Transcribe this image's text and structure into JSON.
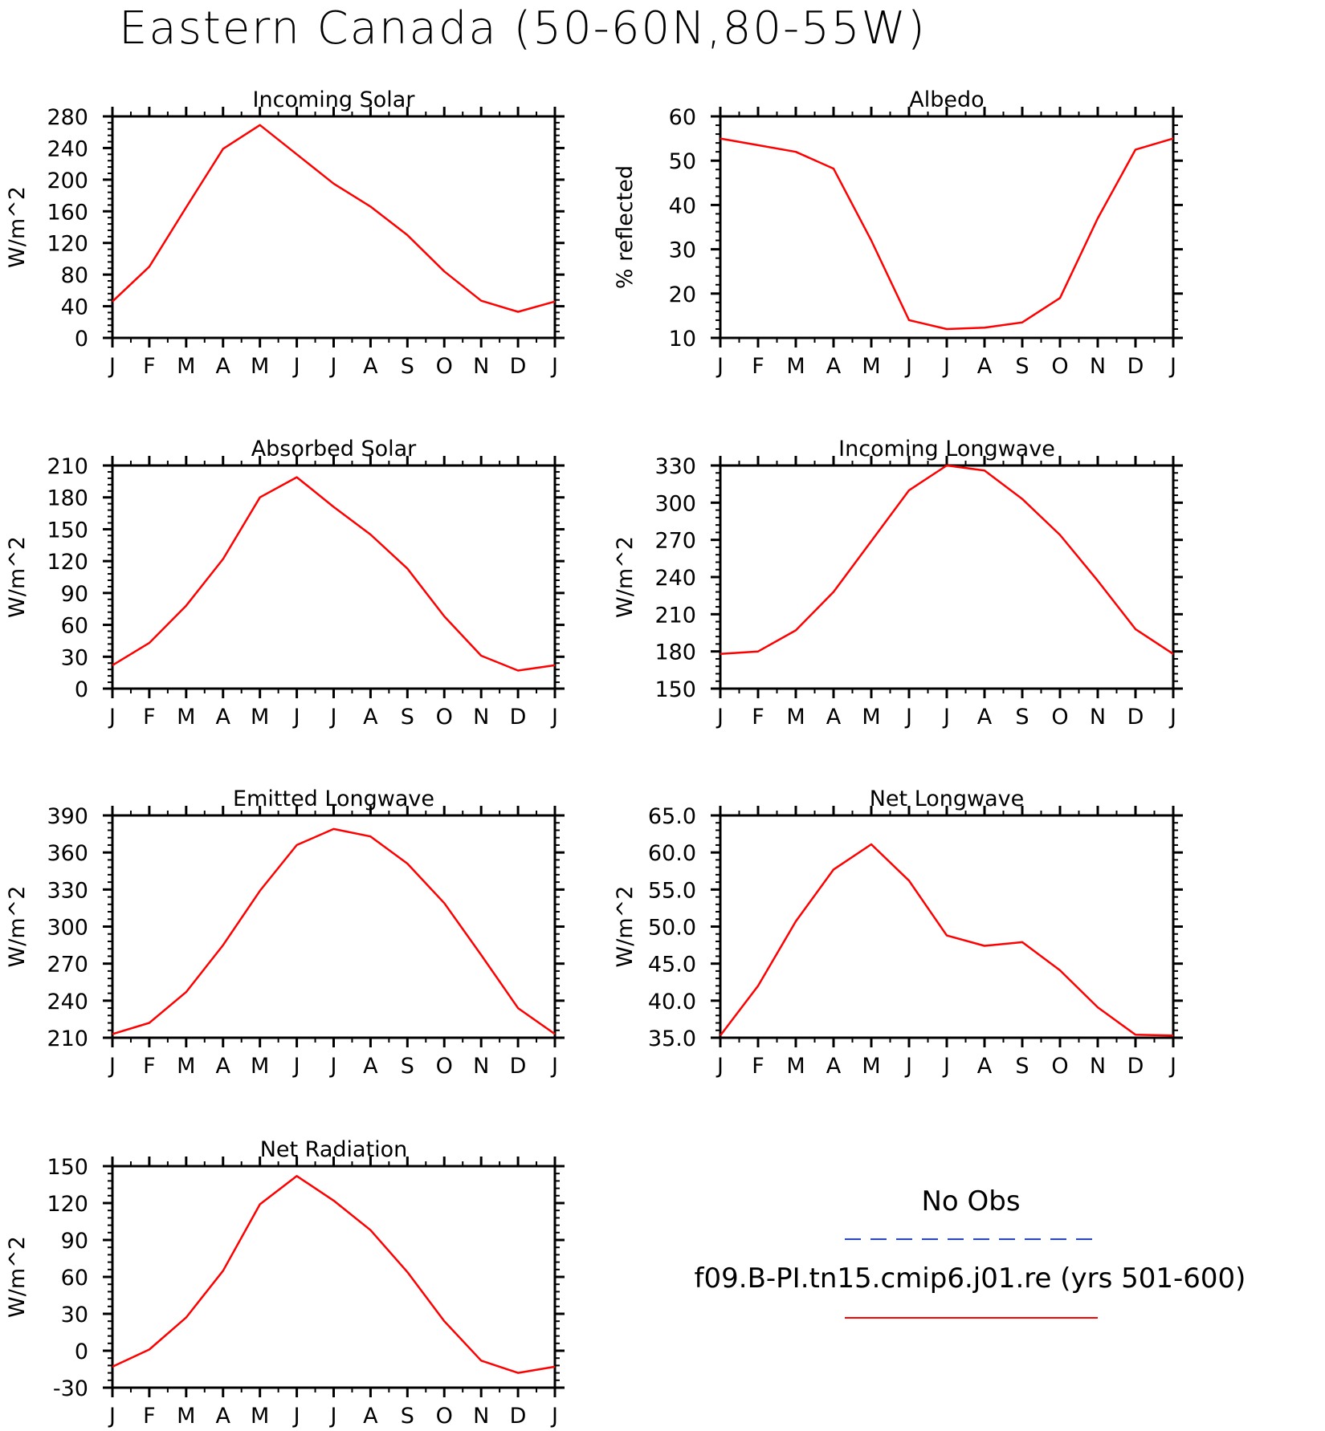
{
  "main_title": "Eastern Canada (50-60N,80-55W)",
  "months": [
    "J",
    "F",
    "M",
    "A",
    "M",
    "J",
    "J",
    "A",
    "S",
    "O",
    "N",
    "D",
    "J"
  ],
  "legend": {
    "obs_label": "No Obs",
    "obs_color": "#1f3fff",
    "model_label": "f09.B-PI.tn15.cmip6.j01.re (yrs 501-600)",
    "model_color": "#ff0000"
  },
  "chart_data": [
    {
      "type": "line",
      "title": "Incoming Solar",
      "ylabel": "W/m^2",
      "ylim": [
        0,
        280
      ],
      "yticks": [
        "0",
        "40",
        "80",
        "120",
        "160",
        "200",
        "240",
        "280"
      ],
      "series": [
        {
          "name": "f09.B-PI.tn15.cmip6.j01.re (yrs 501-600)",
          "color": "#ff0000",
          "values": [
            46,
            90,
            165,
            239,
            269,
            232,
            195,
            166,
            130,
            84,
            47,
            33,
            46
          ]
        }
      ]
    },
    {
      "type": "line",
      "title": "Albedo",
      "ylabel": "% reflected",
      "ylim": [
        10,
        60
      ],
      "yticks": [
        "10",
        "20",
        "30",
        "40",
        "50",
        "60"
      ],
      "series": [
        {
          "name": "f09.B-PI.tn15.cmip6.j01.re (yrs 501-600)",
          "color": "#ff0000",
          "values": [
            55,
            53.5,
            52,
            48.2,
            32,
            14,
            12,
            12.3,
            13.5,
            19,
            37,
            52.5,
            55
          ]
        }
      ]
    },
    {
      "type": "line",
      "title": "Absorbed Solar",
      "ylabel": "W/m^2",
      "ylim": [
        0,
        210
      ],
      "yticks": [
        "0",
        "30",
        "60",
        "90",
        "120",
        "150",
        "180",
        "210"
      ],
      "series": [
        {
          "name": "f09.B-PI.tn15.cmip6.j01.re (yrs 501-600)",
          "color": "#ff0000",
          "values": [
            22,
            43,
            78,
            122,
            180,
            199,
            171,
            145,
            113,
            68,
            31,
            17,
            22
          ]
        }
      ]
    },
    {
      "type": "line",
      "title": "Incoming Longwave",
      "ylabel": "W/m^2",
      "ylim": [
        150,
        330
      ],
      "yticks": [
        "150",
        "180",
        "210",
        "240",
        "270",
        "300",
        "330"
      ],
      "series": [
        {
          "name": "f09.B-PI.tn15.cmip6.j01.re (yrs 501-600)",
          "color": "#ff0000",
          "values": [
            178,
            180,
            197,
            228,
            269,
            310,
            330,
            326,
            303,
            274,
            237,
            198,
            178
          ]
        }
      ]
    },
    {
      "type": "line",
      "title": "Emitted Longwave",
      "ylabel": "W/m^2",
      "ylim": [
        210,
        390
      ],
      "yticks": [
        "210",
        "240",
        "270",
        "300",
        "330",
        "360",
        "390"
      ],
      "series": [
        {
          "name": "f09.B-PI.tn15.cmip6.j01.re (yrs 501-600)",
          "color": "#ff0000",
          "values": [
            213,
            222,
            247,
            285,
            329,
            366,
            379,
            373,
            351,
            319,
            277,
            234,
            213
          ]
        }
      ]
    },
    {
      "type": "line",
      "title": "Net Longwave",
      "ylabel": "W/m^2",
      "ylim": [
        35,
        65
      ],
      "yticks": [
        "35.0",
        "40.0",
        "45.0",
        "50.0",
        "55.0",
        "60.0",
        "65.0"
      ],
      "series": [
        {
          "name": "f09.B-PI.tn15.cmip6.j01.re (yrs 501-600)",
          "color": "#ff0000",
          "values": [
            35.3,
            42,
            50.7,
            57.7,
            61.1,
            56.2,
            48.8,
            47.4,
            47.9,
            44.1,
            39.1,
            35.4,
            35.3
          ]
        }
      ]
    },
    {
      "type": "line",
      "title": "Net Radiation",
      "ylabel": "W/m^2",
      "ylim": [
        -30,
        150
      ],
      "yticks": [
        "-30",
        "0",
        "30",
        "60",
        "90",
        "120",
        "150"
      ],
      "series": [
        {
          "name": "f09.B-PI.tn15.cmip6.j01.re (yrs 501-600)",
          "color": "#ff0000",
          "values": [
            -13,
            1,
            27,
            65,
            119,
            142,
            122,
            98,
            64,
            24,
            -8,
            -18,
            -13
          ]
        }
      ]
    }
  ]
}
